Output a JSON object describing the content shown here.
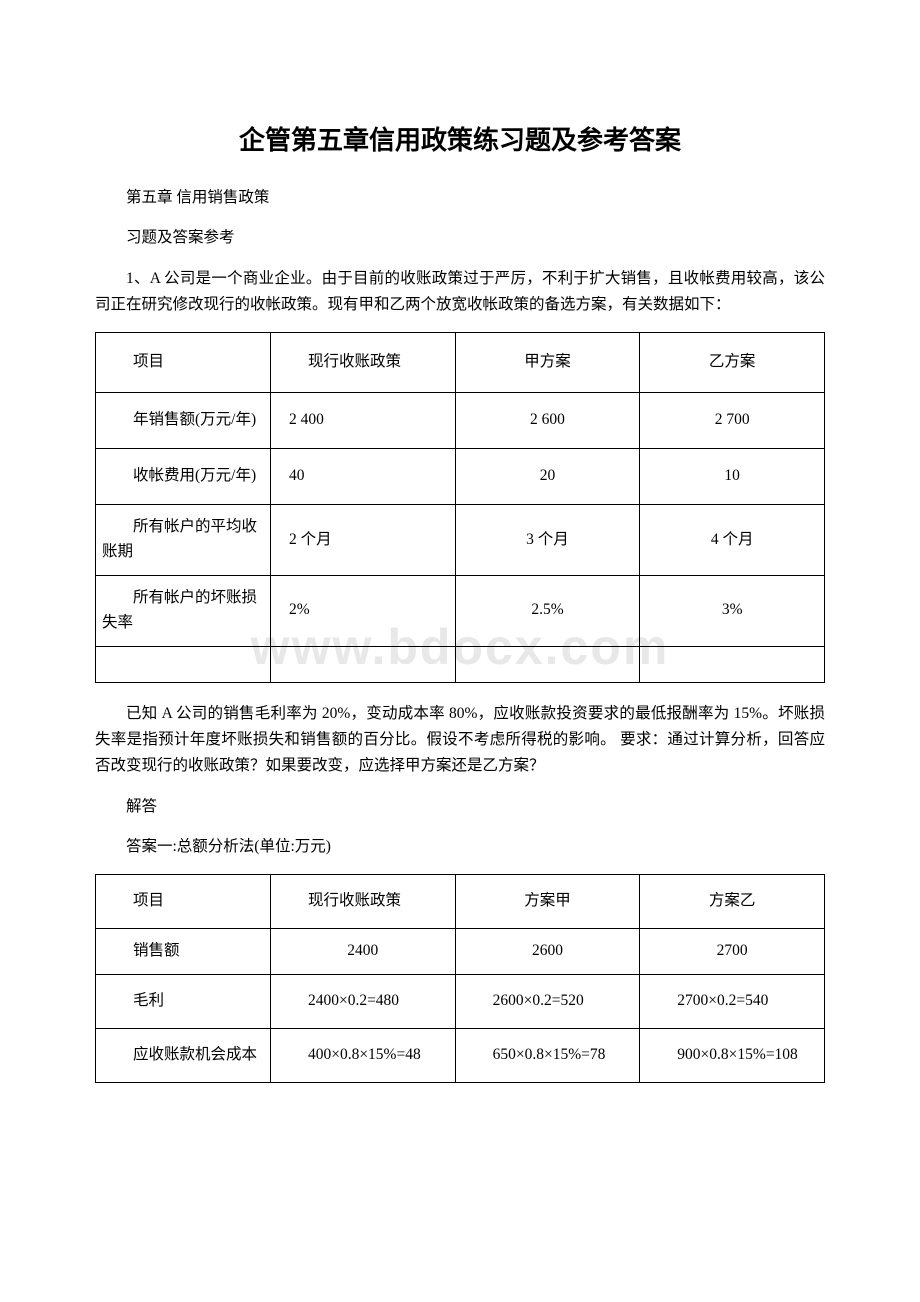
{
  "watermark": "www.bdocx.com",
  "title": "企管第五章信用政策练习题及参考答案",
  "paragraphs": {
    "p1": "第五章 信用销售政策",
    "p2": "习题及答案参考",
    "p3": "1、A 公司是一个商业企业。由于目前的收账政策过于严厉，不利于扩大销售，且收帐费用较高，该公司正在研究修改现行的收帐政策。现有甲和乙两个放宽收帐政策的备选方案，有关数据如下：",
    "p4": "已知 A 公司的销售毛利率为 20%，变动成本率 80%，应收账款投资要求的最低报酬率为 15%。坏账损失率是指预计年度坏账损失和销售额的百分比。假设不考虑所得税的影响。 要求：通过计算分析，回答应否改变现行的收账政策？如果要改变，应选择甲方案还是乙方案？",
    "p5": "解答",
    "p6": "答案一:总额分析法(单位:万元)"
  },
  "table1": {
    "headers": [
      "项目",
      "　　现行收账政策",
      "甲方案",
      "乙方案"
    ],
    "rows": [
      [
        "　　年销售额(万元/年)",
        "2 400",
        "2 600",
        "2 700"
      ],
      [
        "　　收帐费用(万元/年)",
        "40",
        "20",
        "10"
      ],
      [
        "　　所有帐户的平均收账期",
        "2 个月",
        "3 个月",
        "4 个月"
      ],
      [
        "　　所有帐户的坏账损失率",
        "2%",
        "2.5%",
        "3%"
      ],
      [
        "",
        "",
        "",
        ""
      ]
    ]
  },
  "table2": {
    "headers": [
      "项目",
      "　　现行收账政策",
      "方案甲",
      "方案乙"
    ],
    "rows": [
      [
        "　　销售额",
        "2400",
        "2600",
        "2700"
      ],
      [
        "　　毛利",
        "　　2400×0.2=480",
        "　　2600×0.2=520",
        "　　2700×0.2=540"
      ],
      [
        "　　应收账款机会成本",
        "　　400×0.8×15%=48",
        "　　650×0.8×15%=78",
        "　　900×0.8×15%=108"
      ]
    ]
  },
  "colors": {
    "text": "#000000",
    "background": "#ffffff",
    "border": "#000000",
    "watermark": "#e8e8e8"
  },
  "fonts": {
    "body_size": 15.5,
    "title_size": 26,
    "watermark_size": 50
  }
}
